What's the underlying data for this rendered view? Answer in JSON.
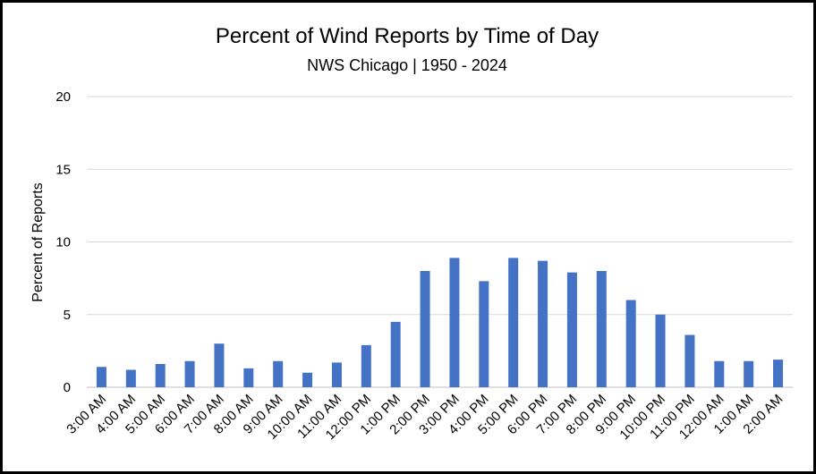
{
  "chart_data": {
    "type": "bar",
    "title": "Percent of Wind Reports by Time of Day",
    "subtitle": "NWS Chicago | 1950 - 2024",
    "xlabel": "",
    "ylabel": "Percent of Reports",
    "ylim": [
      0,
      20
    ],
    "yticks": [
      0,
      5,
      10,
      15,
      20
    ],
    "grid": true,
    "legend": "none",
    "bar_color": "#4472c4",
    "categories": [
      "3:00 AM",
      "4:00 AM",
      "5:00 AM",
      "6:00 AM",
      "7:00 AM",
      "8:00 AM",
      "9:00 AM",
      "10:00 AM",
      "11:00 AM",
      "12:00 PM",
      "1:00 PM",
      "2:00 PM",
      "3:00 PM",
      "4:00 PM",
      "5:00 PM",
      "6:00 PM",
      "7:00 PM",
      "8:00 PM",
      "9:00 PM",
      "10:00 PM",
      "11:00 PM",
      "12:00 AM",
      "1:00 AM",
      "2:00 AM"
    ],
    "values": [
      1.4,
      1.2,
      1.6,
      1.8,
      3.0,
      1.3,
      1.8,
      1.0,
      1.7,
      2.9,
      4.5,
      8.0,
      8.9,
      7.3,
      8.9,
      8.7,
      7.9,
      8.0,
      6.0,
      5.0,
      3.6,
      1.8,
      1.8,
      1.9
    ]
  }
}
